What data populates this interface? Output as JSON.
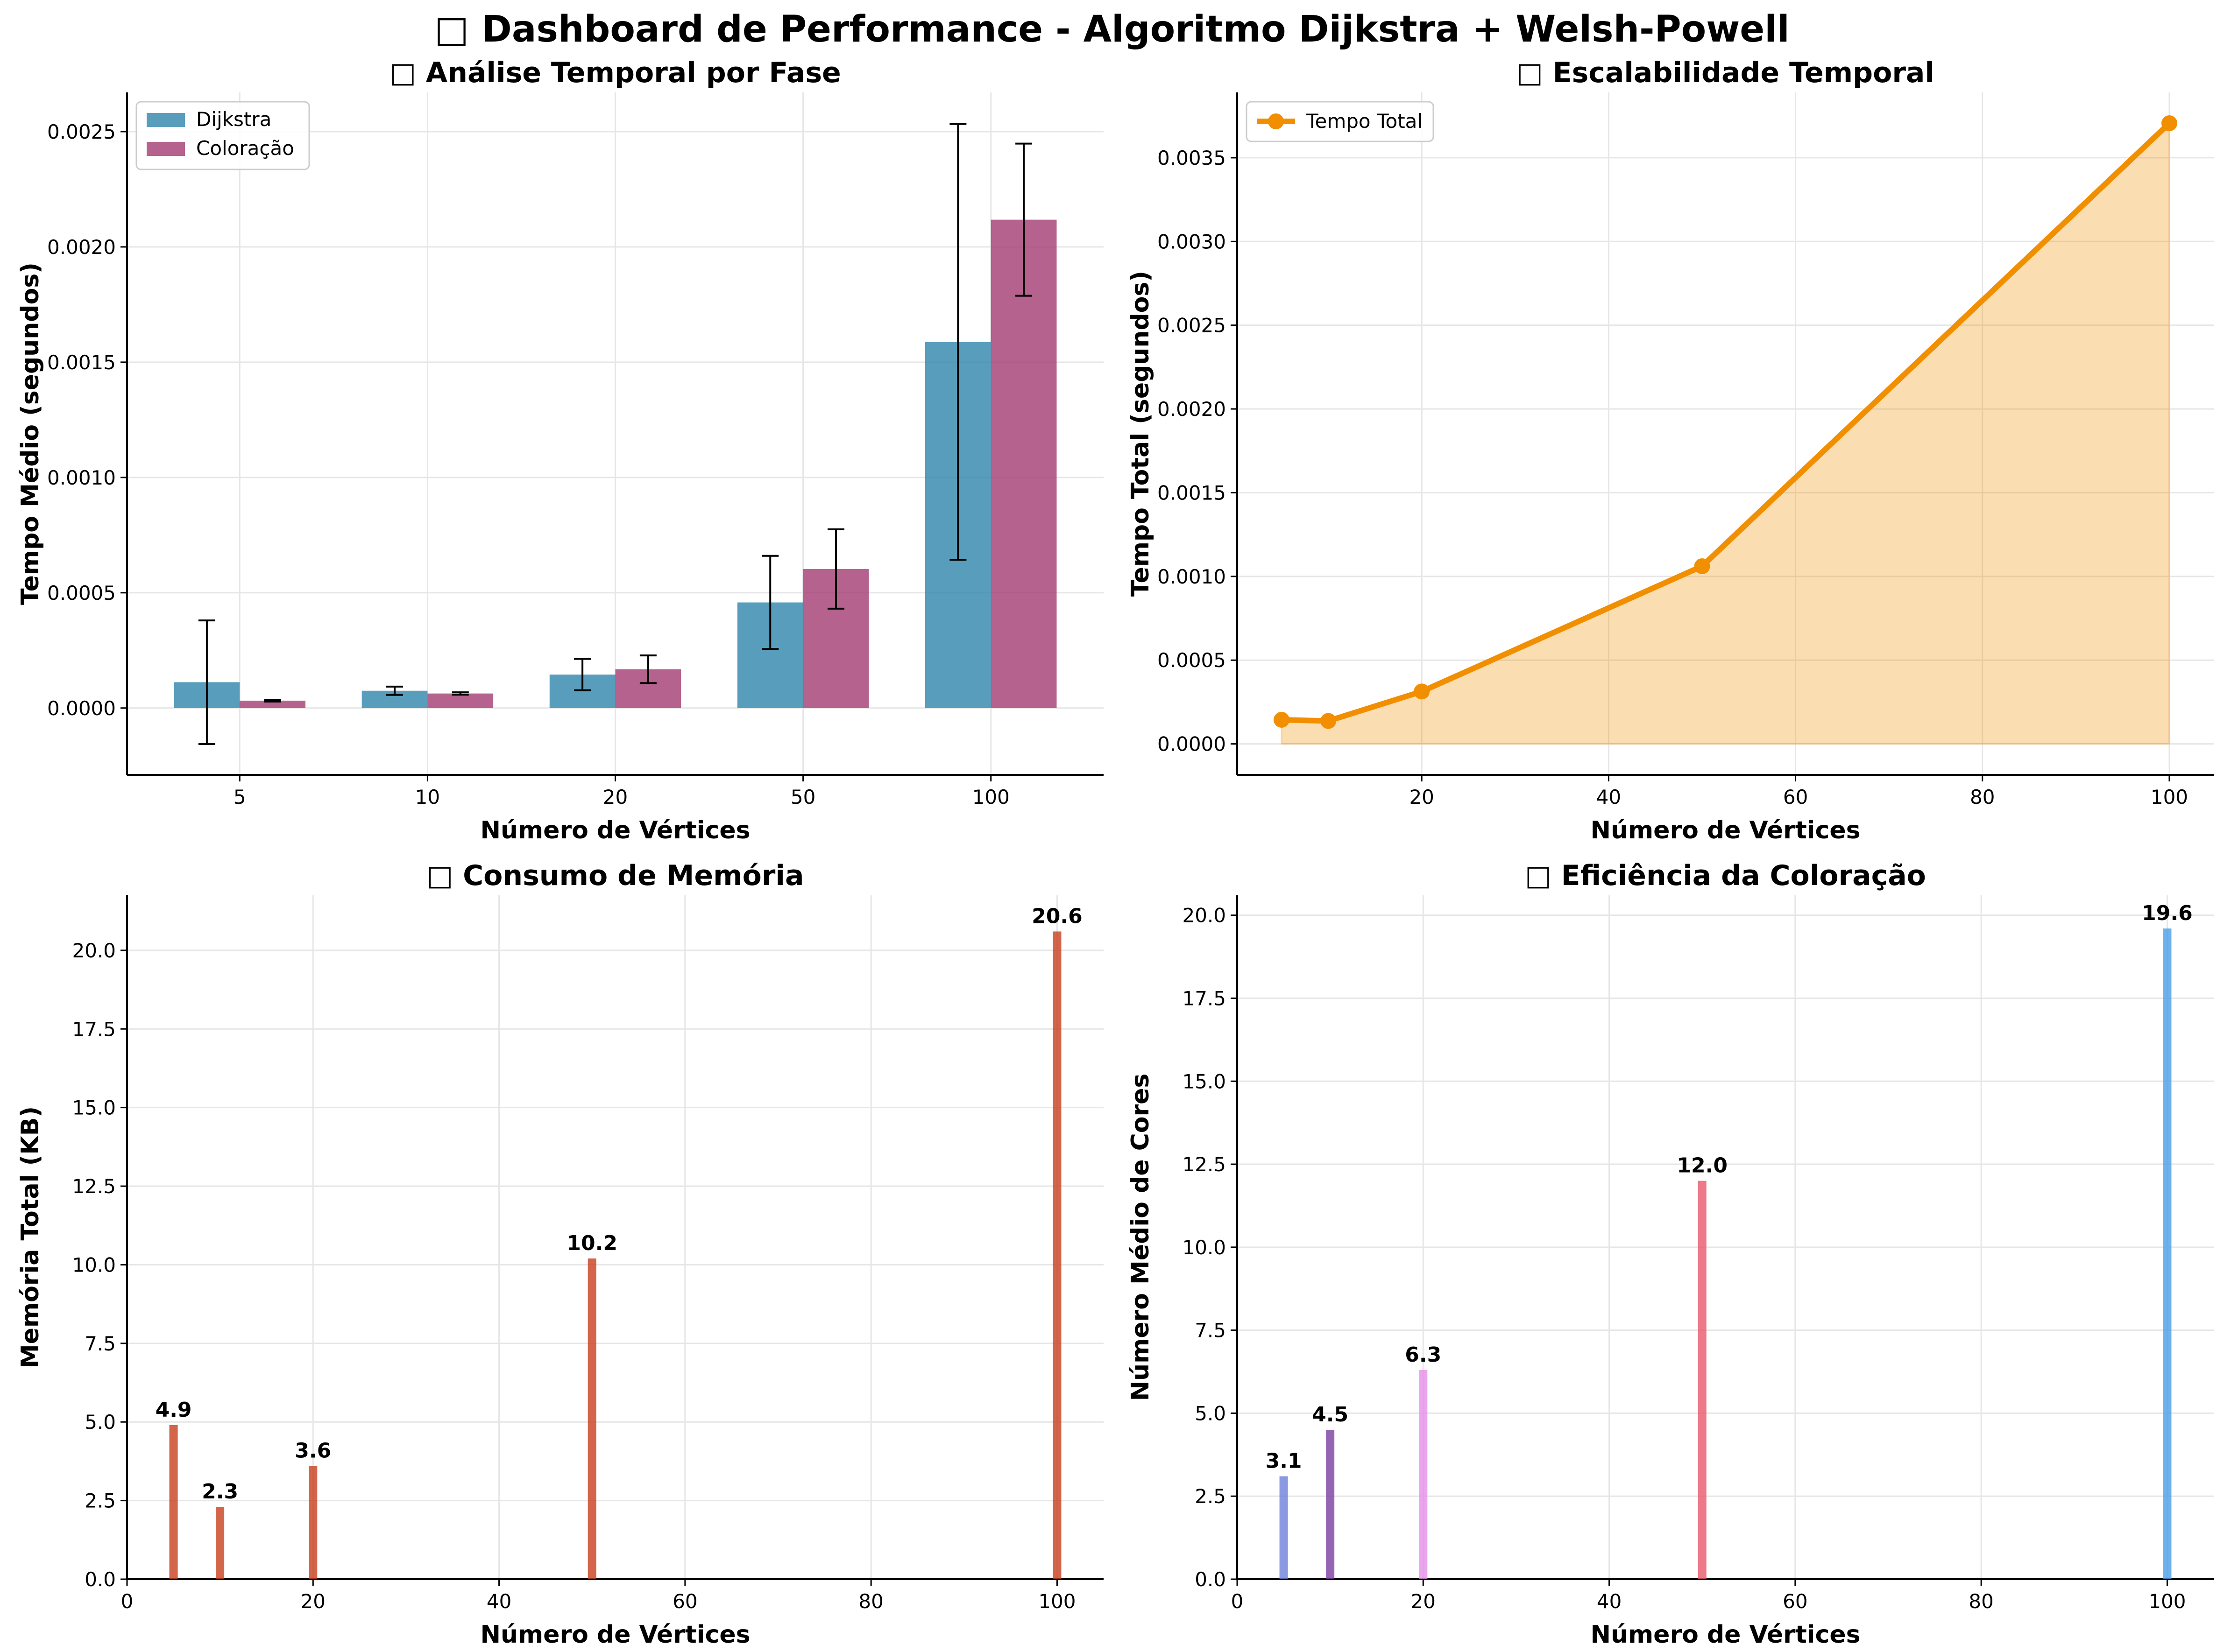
{
  "suptitle": "□ Dashboard de Performance - Algoritmo Dijkstra + Welsh-Powell",
  "chart_data": [
    {
      "type": "bar",
      "title": "□ Análise Temporal por Fase",
      "xlabel": "Número de Vértices",
      "ylabel": "Tempo Médio (segundos)",
      "categories": [
        "5",
        "10",
        "20",
        "50",
        "100"
      ],
      "ylim": [
        -0.00029,
        0.00267
      ],
      "yticks": [
        0.0,
        0.0005,
        0.001,
        0.0015,
        0.002,
        0.0025
      ],
      "ytick_labels": [
        "0.0000",
        "0.0005",
        "0.0010",
        "0.0015",
        "0.0020",
        "0.0025"
      ],
      "grid": true,
      "legend": "top-left",
      "series": [
        {
          "name": "Dijkstra",
          "color": "#2e86ab",
          "values": [
            0.000112,
            7.5e-05,
            0.000145,
            0.000458,
            0.001588
          ],
          "errors": [
            0.000268,
            1.8e-05,
            6.8e-05,
            0.000202,
            0.000945
          ]
        },
        {
          "name": "Coloração",
          "color": "#a23b72",
          "values": [
            3.2e-05,
            6.3e-05,
            0.000168,
            0.000603,
            0.002118
          ],
          "errors": [
            4e-06,
            5e-06,
            6e-05,
            0.000172,
            0.00033
          ]
        }
      ]
    },
    {
      "type": "area",
      "title": "□ Escalabilidade Temporal",
      "xlabel": "Número de Vértices",
      "ylabel": "Tempo Total (segundos)",
      "xlim": [
        0.25,
        104.75
      ],
      "ylim": [
        -0.000185,
        0.00389
      ],
      "xticks": [
        20,
        40,
        60,
        80,
        100
      ],
      "yticks": [
        0.0,
        0.0005,
        0.001,
        0.0015,
        0.002,
        0.0025,
        0.003,
        0.0035
      ],
      "ytick_labels": [
        "0.0000",
        "0.0005",
        "0.0010",
        "0.0015",
        "0.0020",
        "0.0025",
        "0.0030",
        "0.0035"
      ],
      "grid": true,
      "legend": "top-left",
      "series": [
        {
          "name": "Tempo Total",
          "color": "#f18f01",
          "x": [
            5,
            10,
            20,
            50,
            100
          ],
          "y": [
            0.000144,
            0.000137,
            0.000313,
            0.001061,
            0.003706
          ]
        }
      ]
    },
    {
      "type": "bar",
      "title": "□ Consumo de Memória",
      "xlabel": "Número de Vértices",
      "ylabel": "Memória Total (KB)",
      "xlim": [
        0,
        105
      ],
      "ylim": [
        0,
        21.75
      ],
      "xticks": [
        0,
        20,
        40,
        60,
        80,
        100
      ],
      "yticks": [
        0,
        2.5,
        5,
        7.5,
        10,
        12.5,
        15,
        17.5,
        20
      ],
      "ytick_labels": [
        "0.0",
        "2.5",
        "5.0",
        "7.5",
        "10.0",
        "12.5",
        "15.0",
        "17.5",
        "20.0"
      ],
      "grid": true,
      "x": [
        5,
        10,
        20,
        50,
        100
      ],
      "values": [
        4.9,
        2.3,
        3.6,
        10.2,
        20.6
      ],
      "data_labels": [
        "4.9",
        "2.3",
        "3.6",
        "10.2",
        "20.6"
      ],
      "color": "#c73e1d"
    },
    {
      "type": "bar",
      "title": "□ Eficiência da Coloração",
      "xlabel": "Número de Vértices",
      "ylabel": "Número Médio de Cores",
      "xlim": [
        0,
        105
      ],
      "ylim": [
        0,
        20.6
      ],
      "xticks": [
        0,
        20,
        40,
        60,
        80,
        100
      ],
      "yticks": [
        0,
        2.5,
        5,
        7.5,
        10,
        12.5,
        15,
        17.5,
        20
      ],
      "ytick_labels": [
        "0.0",
        "2.5",
        "5.0",
        "7.5",
        "10.0",
        "12.5",
        "15.0",
        "17.5",
        "20.0"
      ],
      "grid": true,
      "x": [
        5,
        10,
        20,
        50,
        100
      ],
      "values": [
        3.1,
        4.5,
        6.3,
        12.0,
        19.6
      ],
      "data_labels": [
        "3.1",
        "4.5",
        "6.3",
        "12.0",
        "19.6"
      ],
      "colors": [
        "#6b7fdb",
        "#7b3fa0",
        "#e68fe8",
        "#e8576b",
        "#4a9ee8"
      ]
    }
  ]
}
